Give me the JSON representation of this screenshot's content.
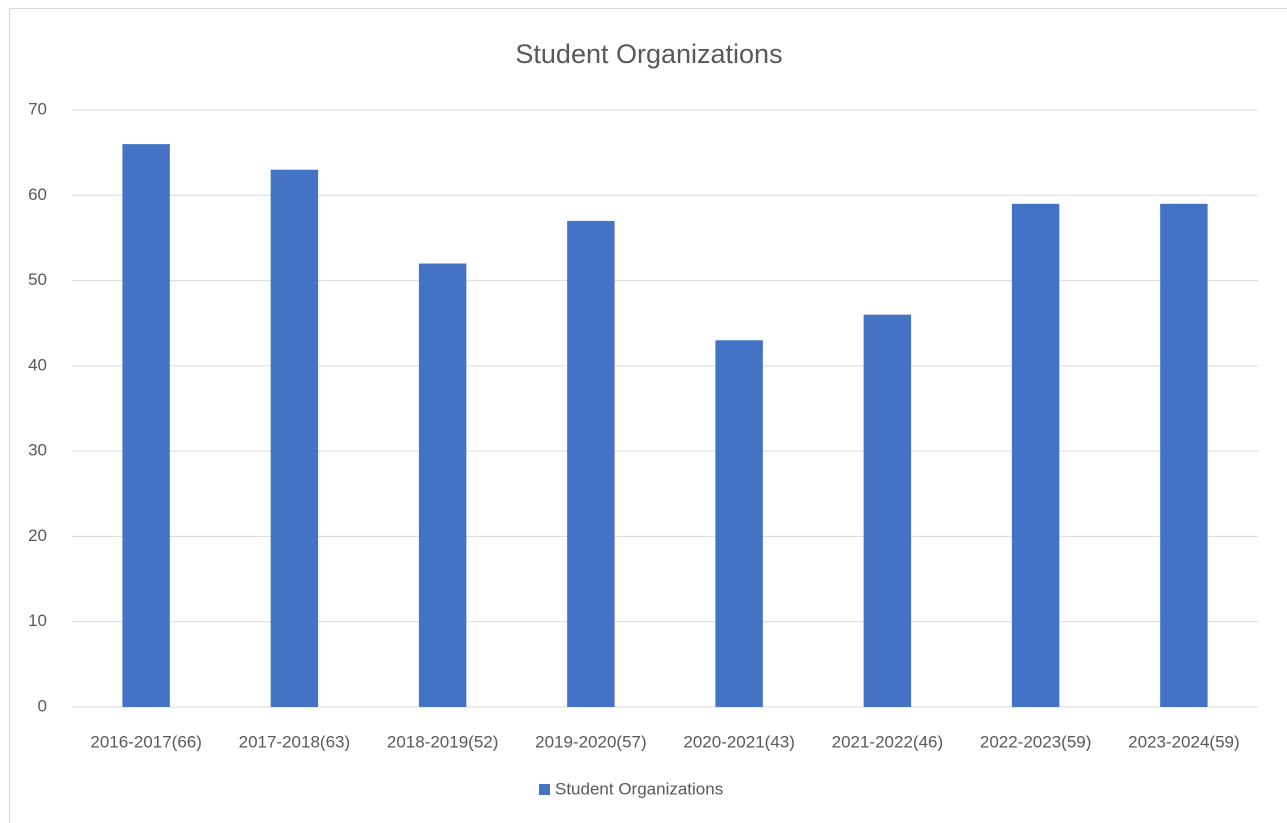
{
  "chart_data": {
    "type": "bar",
    "title": "Student Organizations",
    "categories": [
      "2016-2017(66)",
      "2017-2018(63)",
      "2018-2019(52)",
      "2019-2020(57)",
      "2020-2021(43)",
      "2021-2022(46)",
      "2022-2023(59)",
      "2023-2024(59)"
    ],
    "series": [
      {
        "name": "Student Organizations",
        "color": "#4472c4",
        "values": [
          66,
          63,
          52,
          57,
          43,
          46,
          59,
          59
        ]
      }
    ],
    "ylim": [
      0,
      70
    ],
    "yticks": [
      0,
      10,
      20,
      30,
      40,
      50,
      60,
      70
    ],
    "grid": true,
    "legend": "bottom"
  }
}
